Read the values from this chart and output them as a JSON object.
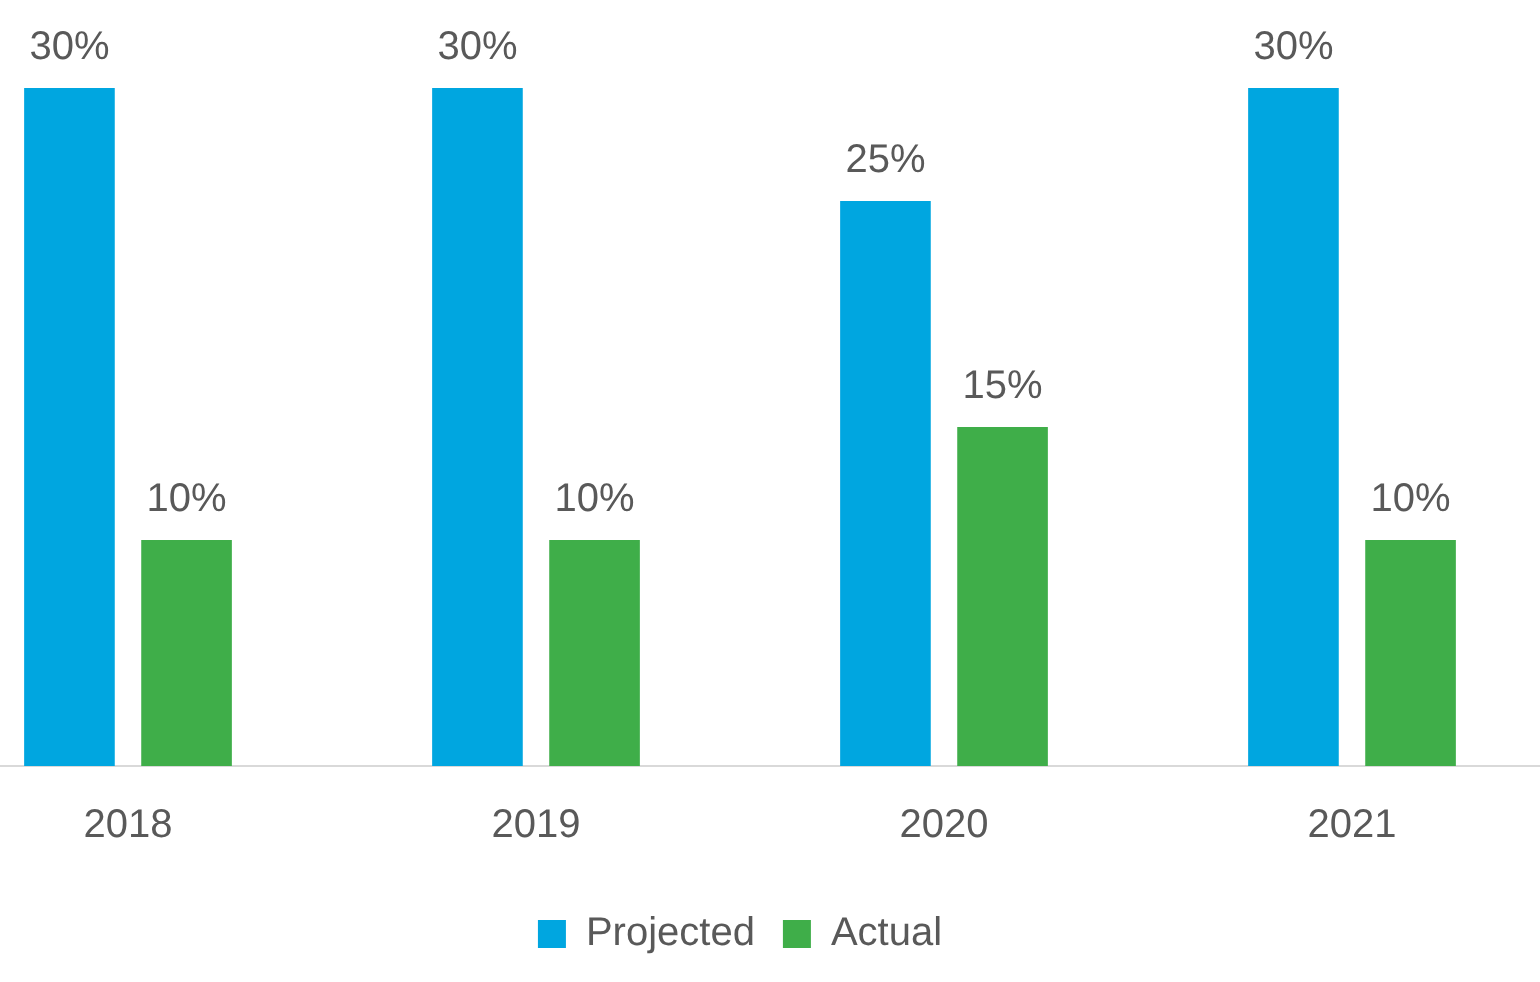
{
  "chart_data": {
    "type": "bar",
    "categories": [
      "2018",
      "2019",
      "2020",
      "2021"
    ],
    "series": [
      {
        "name": "Projected",
        "color": "#00a6e0",
        "values": [
          30,
          30,
          25,
          30
        ],
        "value_labels": [
          "30%",
          "30%",
          "25%",
          "30%"
        ]
      },
      {
        "name": "Actual",
        "color": "#3fae49",
        "values": [
          10,
          10,
          15,
          10
        ],
        "value_labels": [
          "10%",
          "10%",
          "15%",
          "10%"
        ]
      }
    ],
    "legend": "bottom",
    "grid": false
  }
}
